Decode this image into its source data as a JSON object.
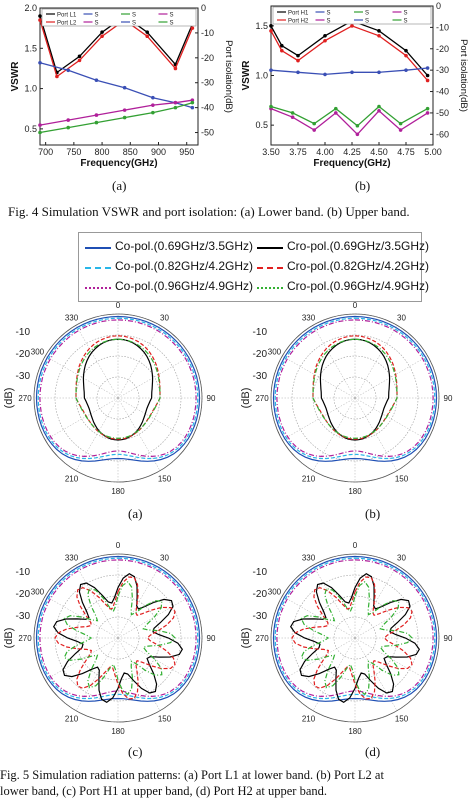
{
  "fig4": {
    "caption": "Fig. 4 Simulation VSWR and port isolation: (a) Lower band. (b) Upper band.",
    "panel_a_label": "(a)",
    "panel_b_label": "(b)"
  },
  "fig5": {
    "caption_line1": "Fig. 5 Simulation radiation patterns: (a) Port L1 at lower band. (b) Port L2 at",
    "caption_line2": "lower band, (c) Port H1 at upper band, (d) Port H2 at upper band.",
    "labels": [
      "(a)",
      "(b)",
      "(c)",
      "(d)"
    ],
    "legend": [
      {
        "text": "Co-pol.(0.69GHz/3.5GHz)",
        "color": "#1f4fb4",
        "style": "solid"
      },
      {
        "text": "Cro-pol.(0.69GHz/3.5GHz)",
        "color": "#000000",
        "style": "solid"
      },
      {
        "text": "Co-pol.(0.82GHz/4.2GHz)",
        "color": "#29b6e8",
        "style": "dash"
      },
      {
        "text": "Cro-pol.(0.82GHz/4.2GHz)",
        "color": "#e02020",
        "style": "dash"
      },
      {
        "text": "Co-pol.(0.96GHz/4.9GHz)",
        "color": "#b0209a",
        "style": "dashdot"
      },
      {
        "text": "Cro-pol.(0.96GHz/4.9GHz)",
        "color": "#33b033",
        "style": "dashdot"
      }
    ],
    "angle_labels": [
      "0",
      "30",
      "90",
      "150",
      "180",
      "210",
      "270",
      "300",
      "330"
    ],
    "db_labels": [
      "-10",
      "-20",
      "-30"
    ],
    "db_axis": "(dB)"
  },
  "chart_data": [
    {
      "type": "line",
      "panel": "(a)",
      "xlabel": "Frequency(GHz)",
      "ylabel": "VSWR",
      "y2label": "Port isolation(dB)",
      "x_ticks": [
        "700",
        "750",
        "800",
        "850",
        "900",
        "950"
      ],
      "y_ticks": [
        "0.5",
        "1.0",
        "1.5",
        "2.0"
      ],
      "y2_ticks": [
        "0",
        "-10",
        "-20",
        "-30",
        "-40",
        "-50"
      ],
      "xlim": [
        690,
        970
      ],
      "ylim": [
        0.3,
        2.0
      ],
      "y2lim": [
        -55,
        0
      ],
      "legend": [
        "Port L1",
        "S",
        "S",
        "S",
        "Port L2",
        "S",
        "S",
        "S"
      ],
      "series": [
        {
          "name": "Port L1",
          "axis": "y",
          "color": "#000000",
          "x": [
            690,
            720,
            760,
            800,
            840,
            880,
            930,
            960
          ],
          "values": [
            1.9,
            1.2,
            1.4,
            1.7,
            1.9,
            1.7,
            1.3,
            1.8
          ]
        },
        {
          "name": "Port L2",
          "axis": "y",
          "color": "#e02020",
          "x": [
            690,
            720,
            760,
            800,
            840,
            880,
            930,
            960
          ],
          "values": [
            1.85,
            1.15,
            1.35,
            1.65,
            1.85,
            1.65,
            1.25,
            1.75
          ]
        },
        {
          "name": "S",
          "axis": "y2",
          "color": "#3a4fb5",
          "x": [
            690,
            740,
            790,
            840,
            890,
            930,
            960
          ],
          "values": [
            -22,
            -25,
            -29,
            -32,
            -36,
            -38,
            -40
          ]
        },
        {
          "name": "S",
          "axis": "y2",
          "color": "#b0209a",
          "x": [
            690,
            740,
            790,
            840,
            890,
            930,
            960
          ],
          "values": [
            -47,
            -45,
            -43,
            -41,
            -39,
            -38,
            -37
          ]
        },
        {
          "name": "S",
          "axis": "y2",
          "color": "#33a033",
          "x": [
            690,
            740,
            790,
            840,
            890,
            930,
            960
          ],
          "values": [
            -50,
            -48,
            -46,
            -44,
            -42,
            -40,
            -38
          ]
        }
      ]
    },
    {
      "type": "line",
      "panel": "(b)",
      "xlabel": "Frequency(GHz)",
      "ylabel": "VSWR",
      "y2label": "Port isolation(dB)",
      "x_ticks": [
        "3.50",
        "3.75",
        "4.00",
        "4.25",
        "4.50",
        "4.75",
        "5.00"
      ],
      "y_ticks": [
        "0.5",
        "1.0",
        "1.5"
      ],
      "y2_ticks": [
        "0",
        "-10",
        "-20",
        "-30",
        "-40",
        "-50",
        "-60"
      ],
      "xlim": [
        3.5,
        5.0
      ],
      "ylim": [
        0.3,
        1.7
      ],
      "y2lim": [
        -65,
        0
      ],
      "legend": [
        "Port H1",
        "S",
        "S",
        "S",
        "Port H2",
        "S",
        "S",
        "S"
      ],
      "series": [
        {
          "name": "Port H1",
          "axis": "y",
          "color": "#000000",
          "x": [
            3.5,
            3.6,
            3.75,
            4.0,
            4.25,
            4.5,
            4.75,
            4.95
          ],
          "values": [
            1.5,
            1.3,
            1.2,
            1.4,
            1.55,
            1.45,
            1.25,
            1.0
          ]
        },
        {
          "name": "Port H2",
          "axis": "y",
          "color": "#e02020",
          "x": [
            3.5,
            3.6,
            3.75,
            4.0,
            4.25,
            4.5,
            4.75,
            4.95
          ],
          "values": [
            1.45,
            1.25,
            1.15,
            1.35,
            1.5,
            1.4,
            1.2,
            0.95
          ]
        },
        {
          "name": "S",
          "axis": "y2",
          "color": "#3a4fb5",
          "x": [
            3.5,
            3.75,
            4.0,
            4.25,
            4.5,
            4.75,
            4.95
          ],
          "values": [
            -30,
            -31,
            -32,
            -31,
            -31,
            -30,
            -29
          ]
        },
        {
          "name": "S",
          "axis": "y2",
          "color": "#b0209a",
          "x": [
            3.5,
            3.7,
            3.9,
            4.1,
            4.3,
            4.5,
            4.7,
            4.95
          ],
          "values": [
            -48,
            -52,
            -58,
            -50,
            -60,
            -49,
            -58,
            -50
          ]
        },
        {
          "name": "S",
          "axis": "y2",
          "color": "#33a033",
          "x": [
            3.5,
            3.7,
            3.9,
            4.1,
            4.3,
            4.5,
            4.7,
            4.95
          ],
          "values": [
            -47,
            -50,
            -55,
            -48,
            -56,
            -47,
            -55,
            -48
          ]
        }
      ]
    }
  ]
}
